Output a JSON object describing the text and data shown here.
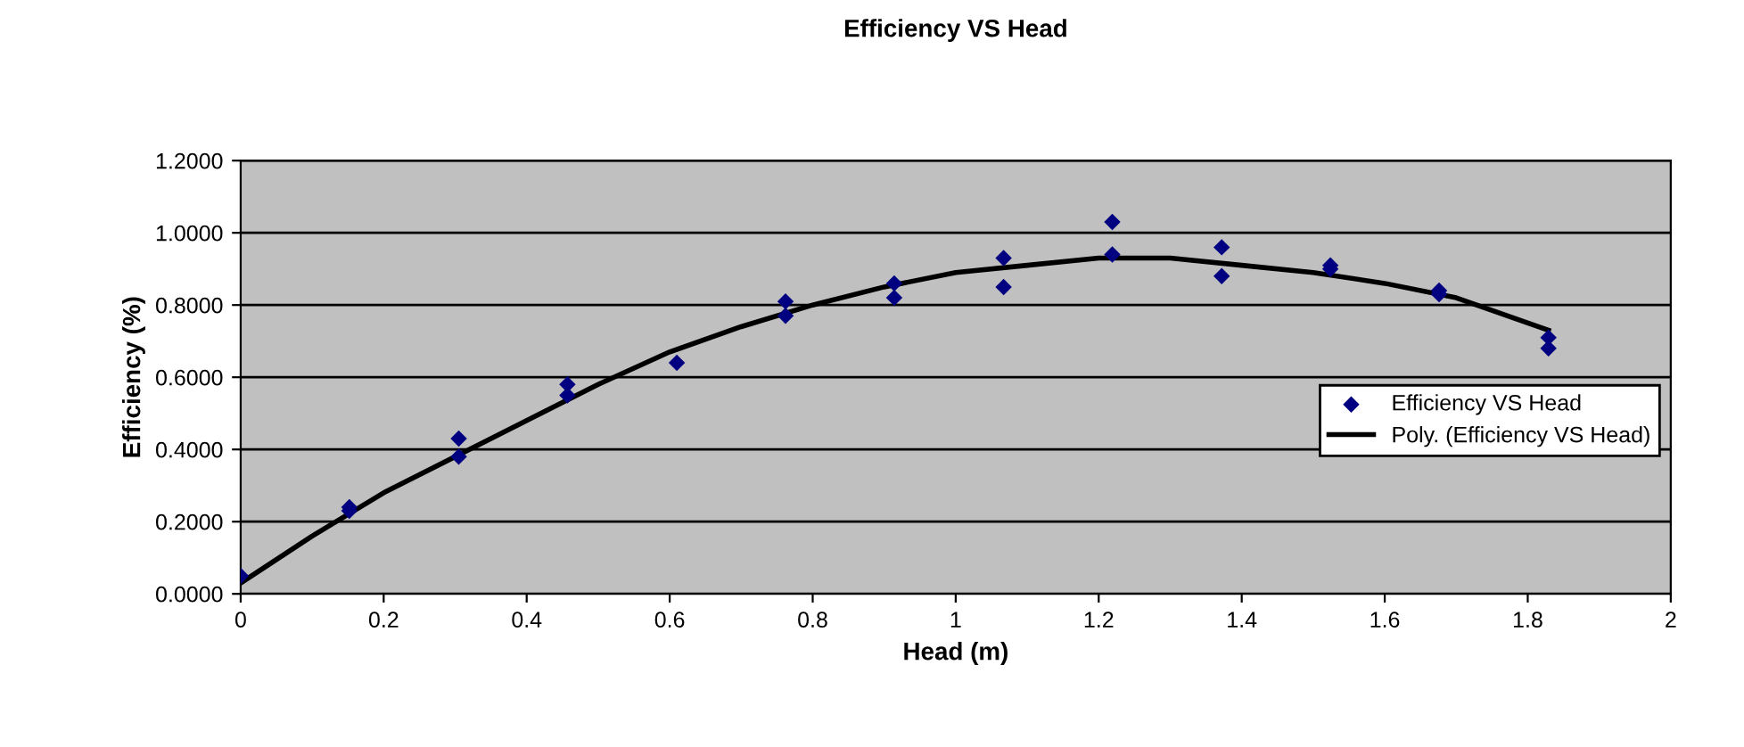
{
  "chart_data": {
    "type": "scatter",
    "title": "Efficiency VS Head",
    "xlabel": "Head (m)",
    "ylabel": "Efficiency (%)",
    "xlim": [
      0,
      2
    ],
    "ylim": [
      0,
      1.2
    ],
    "xticks": [
      0,
      0.2,
      0.4,
      0.6,
      0.8,
      1,
      1.2,
      1.4,
      1.6,
      1.8,
      2
    ],
    "yticks": [
      {
        "value": 0,
        "label": "0.0000"
      },
      {
        "value": 0.2,
        "label": "0.2000"
      },
      {
        "value": 0.4,
        "label": "0.4000"
      },
      {
        "value": 0.6,
        "label": "0.6000"
      },
      {
        "value": 0.8,
        "label": "0.8000"
      },
      {
        "value": 1.0,
        "label": "1.0000"
      },
      {
        "value": 1.2,
        "label": "1.2000"
      }
    ],
    "grid": "y",
    "legend": "right",
    "series": [
      {
        "name": "Efficiency VS Head",
        "marker": "diamond",
        "color": "#000080",
        "x": [
          0,
          0.152,
          0.152,
          0.305,
          0.305,
          0.457,
          0.457,
          0.61,
          0.762,
          0.762,
          0.914,
          0.914,
          1.067,
          1.067,
          1.219,
          1.219,
          1.372,
          1.372,
          1.524,
          1.524,
          1.676,
          1.676,
          1.829,
          1.829
        ],
        "values": [
          0.05,
          0.24,
          0.23,
          0.43,
          0.38,
          0.58,
          0.55,
          0.64,
          0.81,
          0.77,
          0.86,
          0.82,
          0.93,
          0.85,
          1.03,
          0.94,
          0.96,
          0.88,
          0.91,
          0.9,
          0.84,
          0.83,
          0.71,
          0.68
        ]
      },
      {
        "name": "Poly. (Efficiency VS Head)",
        "type": "line",
        "marker": "none",
        "line_style": "solid",
        "color": "#000000",
        "x": [
          0,
          0.1,
          0.2,
          0.3,
          0.4,
          0.5,
          0.6,
          0.7,
          0.8,
          0.9,
          1.0,
          1.1,
          1.2,
          1.3,
          1.4,
          1.5,
          1.6,
          1.7,
          1.829
        ],
        "values": [
          0.03,
          0.16,
          0.28,
          0.38,
          0.48,
          0.58,
          0.67,
          0.74,
          0.8,
          0.85,
          0.89,
          0.91,
          0.93,
          0.93,
          0.91,
          0.89,
          0.86,
          0.82,
          0.73
        ]
      }
    ]
  }
}
